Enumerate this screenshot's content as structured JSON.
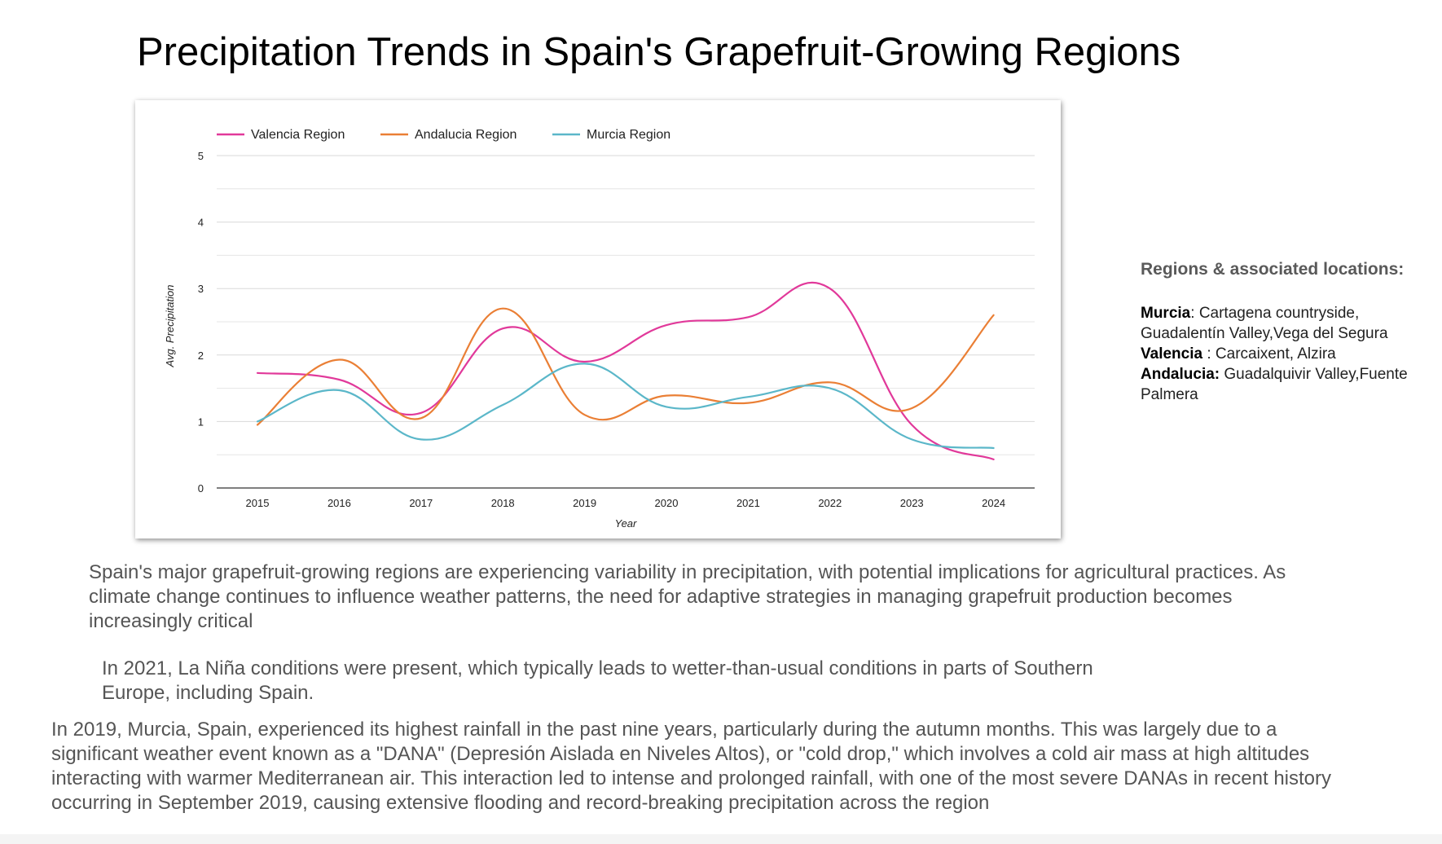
{
  "page": {
    "title": "Precipitation Trends in Spain's Grapefruit-Growing Regions"
  },
  "chart_data": {
    "type": "line",
    "title": "",
    "xlabel": "Year",
    "ylabel": "Avg. Precipitation",
    "ylim": [
      0,
      5
    ],
    "yticks": [
      "0",
      "1",
      "2",
      "3",
      "4",
      "5"
    ],
    "categories": [
      "2015",
      "2016",
      "2017",
      "2018",
      "2019",
      "2020",
      "2021",
      "2022",
      "2023",
      "2024"
    ],
    "grid": true,
    "legend": "top-left",
    "series": [
      {
        "name": "Valencia Region",
        "color": "#e1399a",
        "values": [
          1.73,
          1.63,
          1.13,
          2.4,
          1.9,
          2.45,
          2.57,
          3.0,
          0.95,
          0.43
        ]
      },
      {
        "name": "Andalucia Region",
        "color": "#ea7f35",
        "values": [
          0.95,
          1.93,
          1.05,
          2.7,
          1.1,
          1.39,
          1.28,
          1.59,
          1.2,
          2.6
        ]
      },
      {
        "name": "Murcia Region",
        "color": "#5bb7c9",
        "values": [
          1.0,
          1.47,
          0.73,
          1.25,
          1.87,
          1.22,
          1.37,
          1.5,
          0.73,
          0.6
        ]
      }
    ]
  },
  "regions_panel": {
    "heading": "Regions & associated locations:",
    "entries": [
      {
        "name": "Murcia",
        "sep": ": ",
        "places": "Cartagena countryside, Guadalentín Valley,Vega del Segura"
      },
      {
        "name": "Valencia",
        "sep": " : ",
        "places": "Carcaixent,  Alzira"
      },
      {
        "name": "Andalucia:",
        "sep": " ",
        "places": "Guadalquivir Valley,Fuente Palmera"
      }
    ]
  },
  "paragraphs": {
    "p1": "Spain's major grapefruit-growing regions are experiencing variability in precipitation, with potential implications for agricultural practices. As climate change continues to influence weather patterns, the need for adaptive strategies in managing grapefruit production becomes increasingly critical",
    "p2": "In 2021, La Niña conditions were present, which typically leads to wetter-than-usual conditions in parts of Southern Europe, including Spain.",
    "p3": "In 2019, Murcia, Spain, experienced its highest rainfall in the past nine years, particularly during the autumn months. This was largely due to a significant weather event known as a \"DANA\" (Depresión Aislada en Niveles Altos), or \"cold drop,\" which involves a cold air mass at high altitudes interacting with warmer Mediterranean air. This interaction led to intense and prolonged rainfall, with one of the most severe DANAs in recent history occurring in September 2019, causing extensive flooding and record-breaking precipitation across the region"
  }
}
